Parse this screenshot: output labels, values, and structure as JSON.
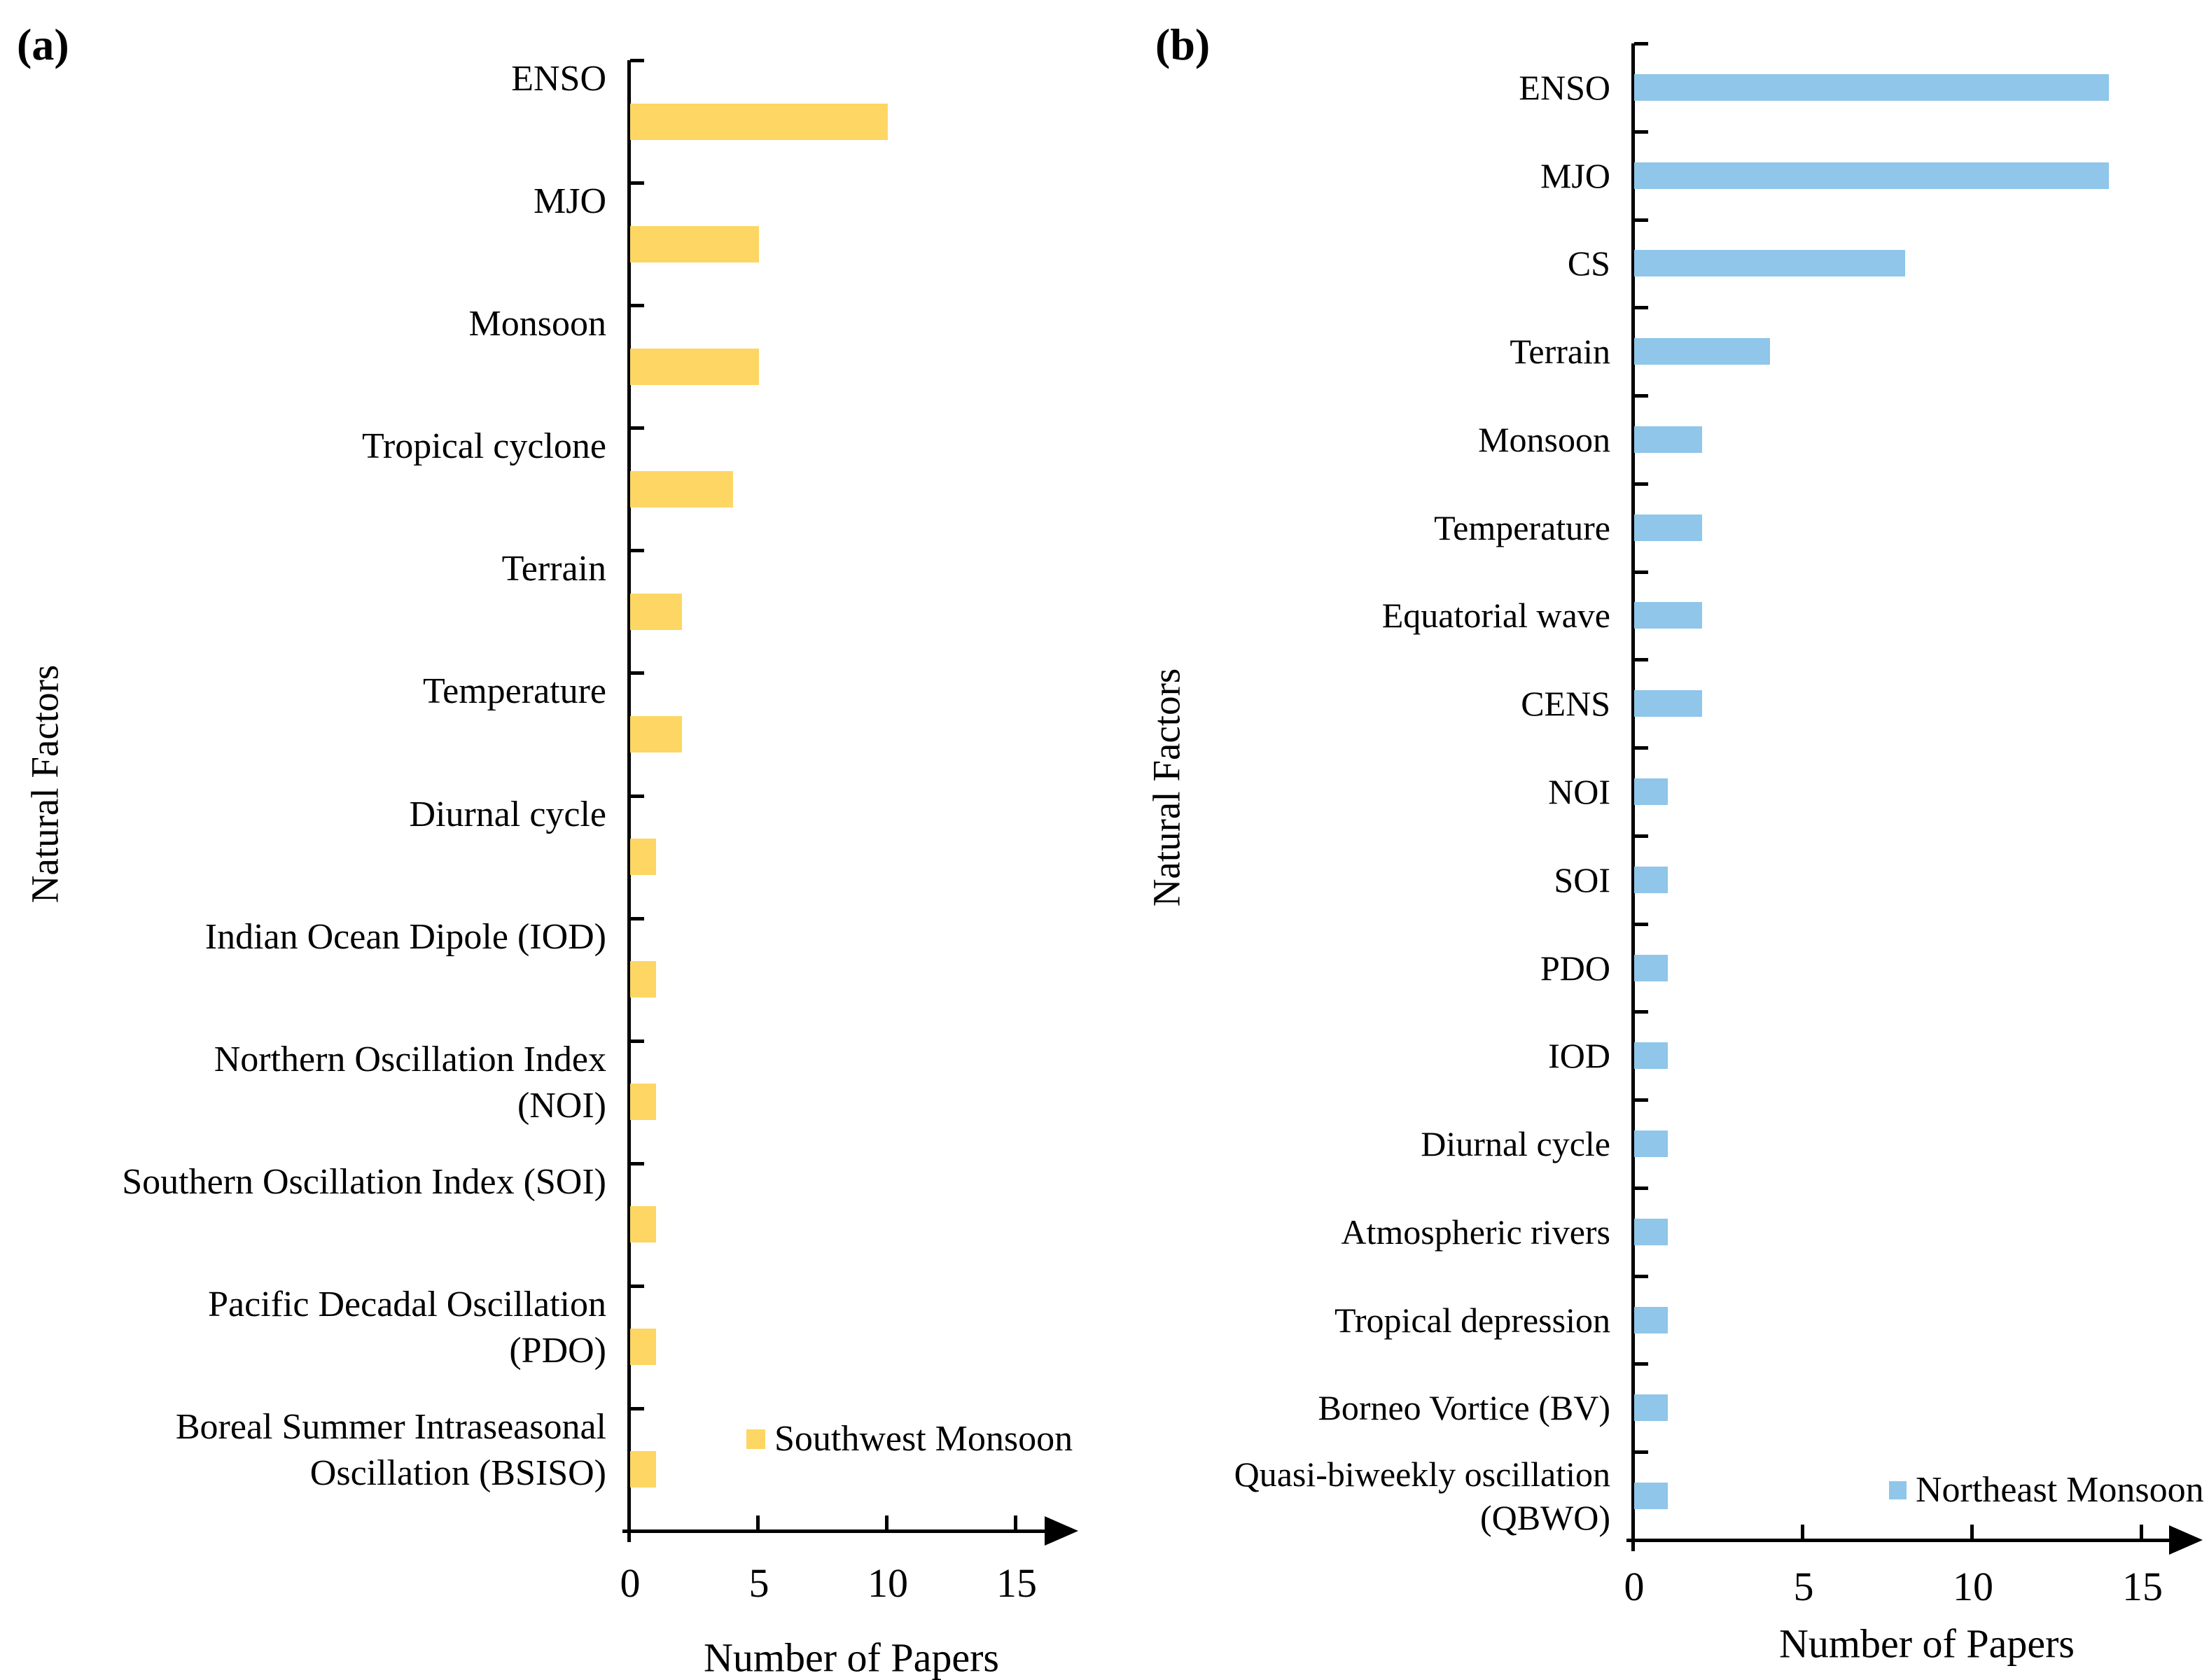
{
  "figure_caption_tags": [
    "(a)",
    "(b)"
  ],
  "chart_data": [
    {
      "type": "bar",
      "orientation": "horizontal",
      "panel_tag": "(a)",
      "xlabel": "Number of Papers",
      "ylabel": "Natural Factors",
      "legend": "Southwest Monsoon",
      "legend_position": "bottom-right",
      "bar_color": "#FDD663",
      "axis_color": "#000000",
      "x_ticks": [
        0,
        5,
        10,
        15
      ],
      "xlim": [
        0,
        17
      ],
      "grid": false,
      "categories": [
        "ENSO",
        "MJO",
        "Monsoon",
        "Tropical cyclone",
        "Terrain",
        "Temperature",
        "Diurnal cycle",
        "Indian Ocean Dipole (IOD)",
        "Northern Oscillation Index\n(NOI)",
        "Southern Oscillation Index (SOI)",
        "Pacific Decadal Oscillation\n(PDO)",
        "Boreal Summer Intraseasonal\nOscillation (BSISO)"
      ],
      "values": [
        10,
        5,
        5,
        4,
        2,
        2,
        1,
        1,
        1,
        1,
        1,
        1
      ]
    },
    {
      "type": "bar",
      "orientation": "horizontal",
      "panel_tag": "(b)",
      "xlabel": "Number of Papers",
      "ylabel": "Natural Factors",
      "legend": "Northeast Monsoon",
      "legend_position": "bottom-right",
      "bar_color": "#8FC6E9",
      "axis_color": "#000000",
      "x_ticks": [
        0,
        5,
        10,
        15
      ],
      "xlim": [
        0,
        17
      ],
      "grid": false,
      "categories": [
        "ENSO",
        "MJO",
        "CS",
        "Terrain",
        "Monsoon",
        "Temperature",
        "Equatorial wave",
        "CENS",
        "NOI",
        "SOI",
        "PDO",
        "IOD",
        "Diurnal cycle",
        "Atmospheric rivers",
        "Tropical depression",
        "Borneo Vortice (BV)",
        "Quasi-biweekly oscillation\n(QBWO)"
      ],
      "values": [
        14,
        14,
        8,
        4,
        2,
        2,
        2,
        2,
        1,
        1,
        1,
        1,
        1,
        1,
        1,
        1,
        1
      ]
    }
  ]
}
